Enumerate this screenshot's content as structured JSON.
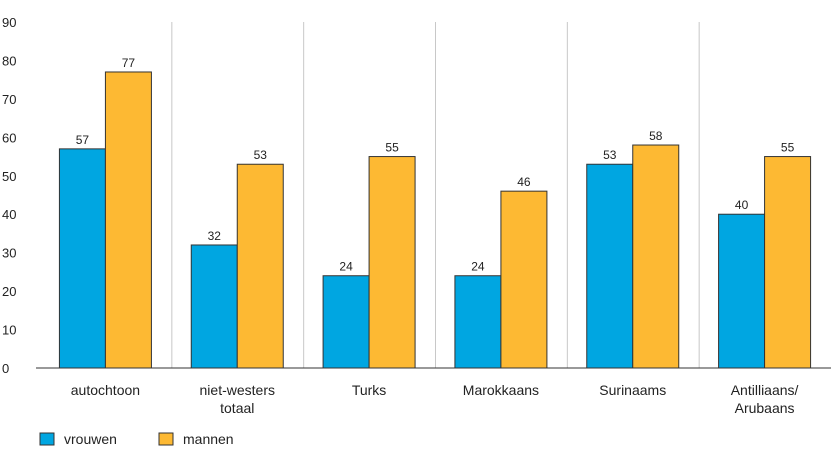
{
  "chart_data": {
    "type": "bar",
    "categories": [
      [
        "autochtoon"
      ],
      [
        "niet-westers",
        "totaal"
      ],
      [
        "Turks"
      ],
      [
        "Marokkaans"
      ],
      [
        "Surinaams"
      ],
      [
        "Antilliaans/",
        "Arubaans"
      ]
    ],
    "series": [
      {
        "name": "vrouwen",
        "color": "#00A6E1",
        "values": [
          57,
          32,
          24,
          24,
          53,
          40
        ]
      },
      {
        "name": "mannen",
        "color": "#FDB933",
        "values": [
          77,
          53,
          55,
          46,
          58,
          55
        ]
      }
    ],
    "ylim": [
      0,
      90
    ],
    "yticks": [
      0,
      10,
      20,
      30,
      40,
      50,
      60,
      70,
      80,
      90
    ],
    "grid": "vertical separators between categories",
    "legend": "bottom-left"
  }
}
